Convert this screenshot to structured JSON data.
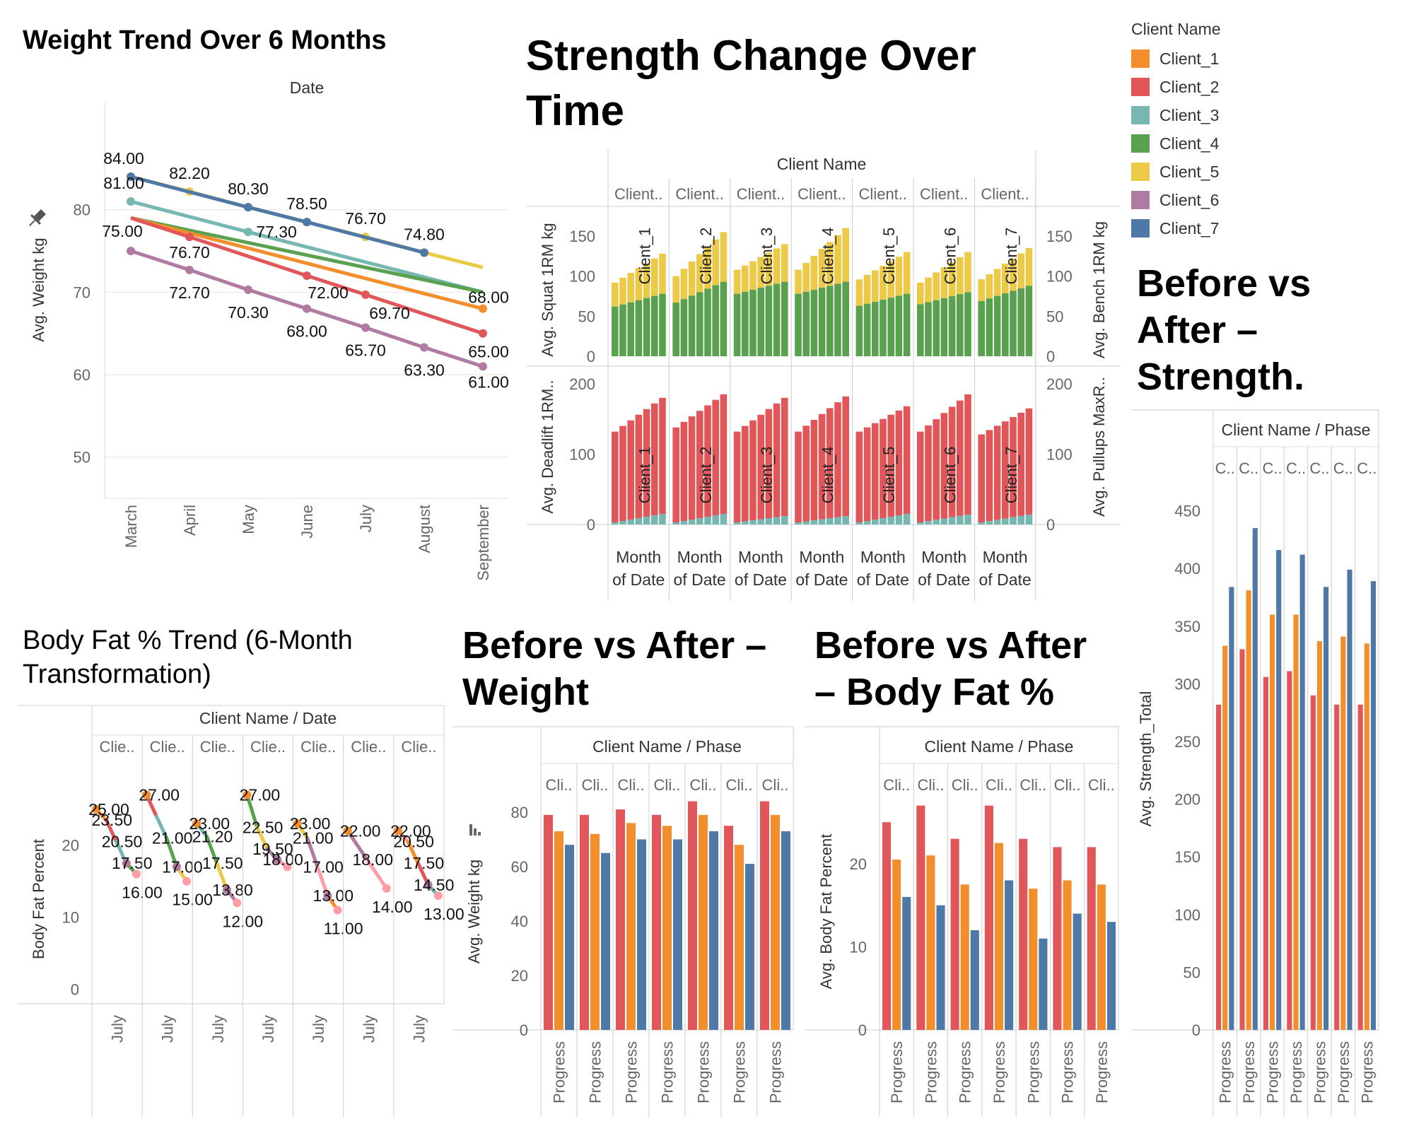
{
  "colors": {
    "Client_1": "#f28e2b",
    "Client_2": "#e15759",
    "Client_3": "#76b7b2",
    "Client_4": "#59a14f",
    "Client_5": "#edc948",
    "Client_6": "#b07aa1",
    "Client_7": "#4e79a7",
    "phase_before": "#e15759",
    "phase_progress": "#f28e2b",
    "phase_after": "#4e79a7",
    "strength_bottom": "#59a14f",
    "strength_top": "#edc948",
    "strength_lower": "#e15759",
    "strength_lower_base": "#76b7b2"
  },
  "icons": {
    "pin": "pin-icon",
    "sort": "sort-icon"
  },
  "legend": {
    "title": "Client Name",
    "items": [
      "Client_1",
      "Client_2",
      "Client_3",
      "Client_4",
      "Client_5",
      "Client_6",
      "Client_7"
    ]
  },
  "titles": {
    "weight_trend": "Weight Trend Over 6 Months",
    "strength_change": [
      "Strength Change Over",
      "Time"
    ],
    "strength_before_after": [
      "Before vs",
      "After –",
      "Strength."
    ],
    "bodyfat_trend": [
      "Body Fat % Trend (6-Month",
      "Transformation)"
    ],
    "weight_before_after": [
      "Before vs After –",
      "Weight"
    ],
    "bodyfat_before_after": [
      "Before vs After",
      "– Body Fat %"
    ]
  },
  "chart_data": [
    {
      "id": "weight_trend",
      "type": "line",
      "header": "Date",
      "ylabel": "Avg. Weight kg",
      "ylim": [
        45,
        93
      ],
      "yticks": [
        50,
        60,
        70,
        80
      ],
      "categories": [
        "March",
        "April",
        "May",
        "June",
        "July",
        "August",
        "September"
      ],
      "series": [
        {
          "name": "Client_5",
          "values": [
            84.0,
            82.2,
            80.3,
            78.5,
            76.7,
            74.8,
            73.0
          ],
          "labels": [
            "84.00",
            "82.20",
            "80.30",
            "78.50",
            "76.70",
            "74.80",
            ""
          ]
        },
        {
          "name": "Client_7",
          "values": [
            84.0,
            null,
            80.3,
            78.5,
            null,
            74.8,
            null
          ],
          "labels": [
            "",
            "",
            "",
            "",
            "",
            "",
            ""
          ]
        },
        {
          "name": "Client_3",
          "values": [
            81.0,
            null,
            77.3,
            null,
            null,
            null,
            70.0
          ],
          "labels": [
            "81.00",
            "",
            "77.30",
            "",
            "",
            "",
            ""
          ]
        },
        {
          "name": "Client_4",
          "values": [
            79.0,
            null,
            null,
            null,
            null,
            null,
            70.0
          ],
          "labels": [
            "",
            "",
            "",
            "",
            "",
            "",
            ""
          ]
        },
        {
          "name": "Client_1",
          "values": [
            79.0,
            null,
            null,
            null,
            null,
            null,
            68.0
          ],
          "labels": [
            "",
            "",
            "",
            "",
            "",
            "",
            "68.00"
          ]
        },
        {
          "name": "Client_2",
          "values": [
            79.0,
            76.7,
            null,
            72.0,
            69.7,
            null,
            65.0
          ],
          "labels": [
            "",
            "76.70",
            "",
            "72.00",
            "69.70",
            "",
            "65.00"
          ]
        },
        {
          "name": "Client_6",
          "values": [
            75.0,
            72.7,
            70.3,
            68.0,
            65.7,
            63.3,
            61.0
          ],
          "labels": [
            "75.00",
            "72.70",
            "70.30",
            "68.00",
            "65.70",
            "63.30",
            "61.00"
          ]
        }
      ]
    },
    {
      "id": "strength_change",
      "type": "bar",
      "header": "Client Name",
      "column_headers": [
        "Client..",
        "Client..",
        "Client..",
        "Client..",
        "Client..",
        "Client..",
        "Client.."
      ],
      "clients": [
        "Client_1",
        "Client_2",
        "Client_3",
        "Client_4",
        "Client_5",
        "Client_6",
        "Client_7"
      ],
      "footer": [
        "Month",
        "of Date"
      ],
      "top": {
        "ylabel_left": "Avg. Squat 1RM kg",
        "ylabel_right": "Avg. Bench 1RM kg",
        "ylim": [
          0,
          180
        ],
        "yticks": [
          0,
          50,
          100,
          150
        ],
        "bottom_start": [
          62,
          67,
          78,
          78,
          63,
          65,
          69
        ],
        "bottom_end": [
          78,
          93,
          93,
          93,
          78,
          80,
          88
        ],
        "total_start": [
          92,
          100,
          108,
          108,
          96,
          92,
          96
        ],
        "total_end": [
          128,
          155,
          140,
          160,
          130,
          130,
          135
        ],
        "months": 7
      },
      "bottom": {
        "ylabel_left": "Avg. Deadlift 1RM..",
        "ylabel_right": "Avg. Pullups MaxR..",
        "ylim": [
          0,
          225
        ],
        "yticks": [
          0,
          100,
          200
        ],
        "base_start": [
          3,
          3,
          3,
          3,
          3,
          3,
          3
        ],
        "base_end": [
          15,
          15,
          12,
          12,
          15,
          14,
          14
        ],
        "total_start": [
          132,
          138,
          132,
          132,
          132,
          132,
          128
        ],
        "total_end": [
          180,
          185,
          180,
          182,
          168,
          185,
          165
        ],
        "months": 7
      }
    },
    {
      "id": "strength_before_after",
      "type": "bar",
      "header": [
        "Client Name",
        "/",
        "Phase"
      ],
      "column_headers": [
        "C..",
        "C..",
        "C..",
        "C..",
        "C..",
        "C..",
        "C.."
      ],
      "ylabel": "Avg. Strength_Total",
      "ylim": [
        0,
        470
      ],
      "yticks": [
        0,
        50,
        100,
        150,
        200,
        250,
        300,
        350,
        400,
        450
      ],
      "xtick": "Progress",
      "values": [
        [
          282,
          333,
          384
        ],
        [
          330,
          381,
          435
        ],
        [
          306,
          360,
          416
        ],
        [
          311,
          360,
          412
        ],
        [
          290,
          337,
          384
        ],
        [
          282,
          341,
          399
        ],
        [
          282,
          335,
          389
        ]
      ]
    },
    {
      "id": "bodyfat_trend",
      "type": "line",
      "header": [
        "Client Name",
        "/",
        "Date"
      ],
      "column_headers": [
        "Clie..",
        "Clie..",
        "Clie..",
        "Clie..",
        "Clie..",
        "Clie..",
        "Clie.."
      ],
      "ylabel": "Body Fat Percent",
      "ylim": [
        -2,
        29
      ],
      "yticks": [
        0,
        10,
        20
      ],
      "xtick": "July",
      "series": [
        {
          "values": [
            25.0,
            23.5,
            20.5,
            17.5,
            16.0
          ],
          "labels": [
            "25.00",
            "23.50",
            "20.50",
            "17.50",
            "16.00"
          ]
        },
        {
          "values": [
            27.0,
            24.0,
            21.0,
            17.0,
            15.0
          ],
          "labels": [
            "27.00",
            "",
            "21.00",
            "17.00",
            "15.00"
          ]
        },
        {
          "values": [
            23.0,
            21.2,
            17.5,
            13.8,
            12.0
          ],
          "labels": [
            "23.00",
            "21.20",
            "17.50",
            "13.80",
            "12.00"
          ]
        },
        {
          "values": [
            27.0,
            22.5,
            19.5,
            18.0,
            17.0
          ],
          "labels": [
            "27.00",
            "22.50",
            "19.50",
            "18.00",
            ""
          ]
        },
        {
          "values": [
            23.0,
            21.0,
            17.0,
            13.0,
            11.0
          ],
          "labels": [
            "23.00",
            "21.00",
            "17.00",
            "13.00",
            "11.00"
          ]
        },
        {
          "values": [
            22.0,
            18.0,
            14.0
          ],
          "labels": [
            "22.00",
            "18.00",
            "14.00"
          ]
        },
        {
          "values": [
            22.0,
            20.5,
            17.5,
            14.5,
            13.0
          ],
          "labels": [
            "22.00",
            "20.50",
            "17.50",
            "14.50",
            "13.00"
          ]
        }
      ]
    },
    {
      "id": "weight_before_after",
      "type": "bar",
      "header": [
        "Client Name",
        "/",
        "Phase"
      ],
      "column_headers": [
        "Cli..",
        "Cli..",
        "Cli..",
        "Cli..",
        "Cli..",
        "Cli..",
        "Cli.."
      ],
      "ylabel": "Avg. Weight kg",
      "ylim": [
        0,
        87
      ],
      "yticks": [
        0,
        20,
        40,
        60,
        80
      ],
      "xtick": "Progress",
      "values": [
        [
          79,
          73,
          68
        ],
        [
          79,
          72,
          65
        ],
        [
          81,
          76,
          70
        ],
        [
          79,
          75,
          70
        ],
        [
          84,
          79,
          73
        ],
        [
          75,
          68,
          61
        ],
        [
          84,
          79,
          73
        ]
      ]
    },
    {
      "id": "bodyfat_before_after",
      "type": "bar",
      "header": [
        "Client Name",
        "/",
        "Phase"
      ],
      "column_headers": [
        "Cli..",
        "Cli..",
        "Cli..",
        "Cli..",
        "Cli..",
        "Cli..",
        "Cli.."
      ],
      "ylabel": "Avg. Body Fat Percent",
      "ylim": [
        0,
        28.5
      ],
      "yticks": [
        0,
        10,
        20
      ],
      "xtick": "Progress",
      "values": [
        [
          25,
          20.5,
          16
        ],
        [
          27,
          21,
          15
        ],
        [
          23,
          17.5,
          12
        ],
        [
          27,
          22.5,
          18
        ],
        [
          23,
          17,
          11
        ],
        [
          22,
          18,
          14
        ],
        [
          22,
          17.5,
          13
        ]
      ]
    }
  ]
}
